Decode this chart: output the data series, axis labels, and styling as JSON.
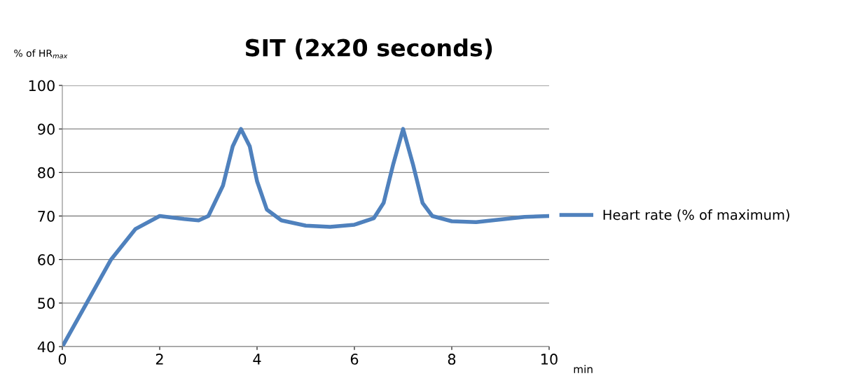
{
  "chart_data": {
    "type": "line",
    "title": "SIT (2x20 seconds)",
    "ylabel": "% of HR$_{max}$",
    "xlabel": "min",
    "series": [
      {
        "name": "Heart rate (% of maximum)",
        "color": "#4f81bd",
        "x": [
          0,
          0.5,
          1,
          1.5,
          2,
          2.5,
          2.8,
          3,
          3.3,
          3.5,
          3.67,
          3.85,
          4,
          4.2,
          4.5,
          5,
          5.5,
          6,
          6.4,
          6.6,
          6.8,
          7,
          7.2,
          7.4,
          7.6,
          8,
          8.5,
          9,
          9.5,
          10
        ],
        "values": [
          40,
          50,
          60,
          67,
          70,
          69.3,
          69,
          70,
          77,
          86,
          90,
          86,
          78,
          71.5,
          69,
          67.8,
          67.5,
          68,
          69.5,
          73,
          82,
          90,
          82,
          73,
          70,
          68.8,
          68.6,
          69.2,
          69.8,
          70
        ]
      }
    ],
    "xlim": [
      0,
      10
    ],
    "xticks": [
      0,
      2,
      4,
      6,
      8,
      10
    ],
    "ylim": [
      40,
      100
    ],
    "yticks": [
      40,
      50,
      60,
      70,
      80,
      90,
      100
    ],
    "grid": "y",
    "legend": "right",
    "marker": "none",
    "line_style": "solid"
  }
}
